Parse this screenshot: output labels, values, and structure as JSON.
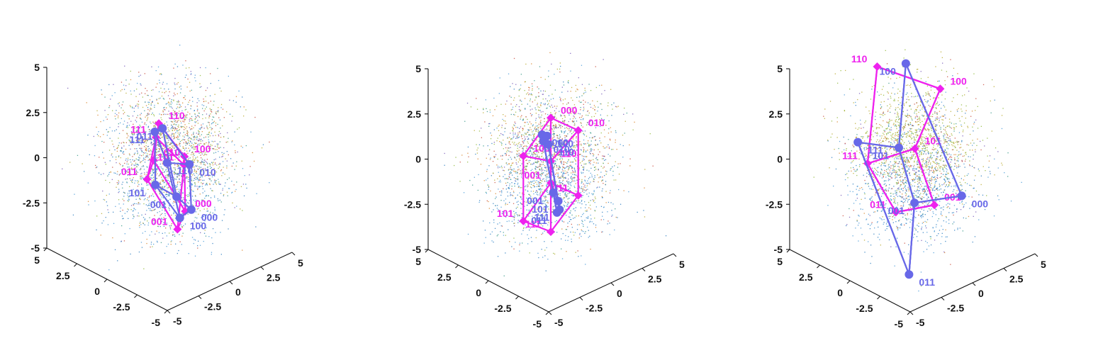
{
  "chart_data": [
    {
      "type": "scatter",
      "title": "",
      "projection": "3d",
      "xlim": [
        -5,
        5
      ],
      "ylim": [
        -5,
        5
      ],
      "zlim": [
        -5,
        5
      ],
      "xticks": [
        "-5",
        "-2.5",
        "0",
        "2.5",
        "5"
      ],
      "yticks": [
        "-5",
        "-2.5",
        "0",
        "2.5",
        "5"
      ],
      "zticks": [
        "-5",
        "-2.5",
        "0",
        "2.5",
        "5"
      ],
      "grid": false,
      "colors": {
        "blue": "#6868e8",
        "magenta": "#ee22ee"
      },
      "cubes": [
        {
          "color": "magenta",
          "marker": "diamond",
          "vertices": [
            {
              "label": "000",
              "xyz": [
                0.3,
                -1.0,
                -2.6
              ]
            },
            {
              "label": "001",
              "xyz": [
                -0.9,
                -1.6,
                -3.0
              ]
            },
            {
              "label": "010",
              "xyz": [
                -0.4,
                0.9,
                -0.2
              ]
            },
            {
              "label": "011",
              "xyz": [
                -1.5,
                0.3,
                -0.7
              ]
            },
            {
              "label": "100",
              "xyz": [
                1.2,
                0.0,
                -0.2
              ]
            },
            {
              "label": "101",
              "xyz": [
                0.2,
                -1.0,
                0.0
              ]
            },
            {
              "label": "110",
              "xyz": [
                0.6,
                1.5,
                1.3
              ]
            },
            {
              "label": "111",
              "xyz": [
                -0.5,
                0.6,
                1.2
              ]
            }
          ]
        },
        {
          "color": "blue",
          "marker": "circle",
          "vertices": [
            {
              "label": "000",
              "xyz": [
                0.4,
                -1.4,
                -2.4
              ]
            },
            {
              "label": "001",
              "xyz": [
                -0.2,
                -0.8,
                -1.7
              ]
            },
            {
              "label": "010",
              "xyz": [
                1.8,
                0.2,
                -0.9
              ]
            },
            {
              "label": "011",
              "xyz": [
                0.8,
                1.4,
                1.0
              ]
            },
            {
              "label": "100",
              "xyz": [
                -0.9,
                -1.8,
                -2.3
              ]
            },
            {
              "label": "101",
              "xyz": [
                -1.9,
                -0.8,
                -0.5
              ]
            },
            {
              "label": "110",
              "xyz": [
                0.1,
                0.3,
                -0.3
              ]
            },
            {
              "label": "111",
              "xyz": [
                -0.4,
                0.8,
                1.4
              ]
            }
          ]
        }
      ]
    },
    {
      "type": "scatter",
      "title": "",
      "projection": "3d",
      "xlim": [
        -5,
        5
      ],
      "ylim": [
        -5,
        5
      ],
      "zlim": [
        -5,
        5
      ],
      "xticks": [
        "-5",
        "-2.5",
        "0",
        "2.5",
        "5"
      ],
      "yticks": [
        "-5",
        "-2.5",
        "0",
        "2.5",
        "5"
      ],
      "zticks": [
        "-5",
        "-2.5",
        "0",
        "2.5",
        "5"
      ],
      "grid": false,
      "colors": {
        "blue": "#6868e8",
        "magenta": "#ee22ee"
      },
      "cubes": [
        {
          "color": "magenta",
          "marker": "diamond",
          "vertices": [
            {
              "label": "000",
              "xyz": [
                0.0,
                0.0,
                2.4
              ]
            },
            {
              "label": "001",
              "xyz": [
                0.0,
                0.0,
                -1.2
              ]
            },
            {
              "label": "010",
              "xyz": [
                2.2,
                0.0,
                1.0
              ]
            },
            {
              "label": "011",
              "xyz": [
                2.2,
                0.0,
                -2.6
              ]
            },
            {
              "label": "100",
              "xyz": [
                -2.2,
                0.0,
                1.0
              ]
            },
            {
              "label": "101",
              "xyz": [
                -2.2,
                0.0,
                -2.6
              ]
            },
            {
              "label": "110",
              "xyz": [
                0.0,
                0.0,
                0.0
              ]
            },
            {
              "label": "111",
              "xyz": [
                0.0,
                0.0,
                -3.9
              ]
            }
          ]
        },
        {
          "color": "blue",
          "marker": "circle",
          "vertices": [
            {
              "label": "000",
              "xyz": [
                -0.7,
                0.0,
                1.7
              ]
            },
            {
              "label": "001",
              "xyz": [
                0.2,
                0.0,
                -1.8
              ]
            },
            {
              "label": "010",
              "xyz": [
                -0.6,
                0.0,
                1.3
              ]
            },
            {
              "label": "011",
              "xyz": [
                0.5,
                0.0,
                -3.0
              ]
            },
            {
              "label": "100",
              "xyz": [
                -0.3,
                0.0,
                1.5
              ]
            },
            {
              "label": "101",
              "xyz": [
                0.6,
                0.0,
                -2.4
              ]
            },
            {
              "label": "110",
              "xyz": [
                -0.2,
                0.0,
                1.0
              ]
            },
            {
              "label": "111",
              "xyz": [
                0.7,
                0.0,
                -2.9
              ]
            }
          ]
        }
      ]
    },
    {
      "type": "scatter",
      "title": "",
      "projection": "3d",
      "xlim": [
        -5,
        5
      ],
      "ylim": [
        -5,
        5
      ],
      "zlim": [
        -5,
        5
      ],
      "xticks": [
        "-5",
        "-2.5",
        "0",
        "2.5",
        "5"
      ],
      "yticks": [
        "-5",
        "-2.5",
        "0",
        "2.5",
        "5"
      ],
      "zticks": [
        "-5",
        "-2.5",
        "0",
        "2.5",
        "5"
      ],
      "grid": false,
      "colors": {
        "blue": "#6868e8",
        "magenta": "#ee22ee"
      },
      "cubes": [
        {
          "color": "magenta",
          "marker": "diamond",
          "vertices": [
            {
              "label": "001",
              "xyz": [
                0.9,
                -0.9,
                -2.4
              ]
            },
            {
              "label": "011",
              "xyz": [
                -1.9,
                -0.6,
                -2.0
              ]
            },
            {
              "label": "101",
              "xyz": [
                0.4,
                0.2,
                0.5
              ]
            },
            {
              "label": "111",
              "xyz": [
                -3.1,
                0.5,
                0.7
              ]
            },
            {
              "label": "100",
              "xyz": [
                3.4,
                1.2,
                2.5
              ]
            },
            {
              "label": "110",
              "xyz": [
                -0.4,
                2.5,
                4.5
              ]
            }
          ]
        },
        {
          "color": "blue",
          "marker": "circle",
          "vertices": [
            {
              "label": "000",
              "xyz": [
                2.8,
                -1.2,
                -2.4
              ]
            },
            {
              "label": "001",
              "xyz": [
                -0.5,
                -0.7,
                -1.9
              ]
            },
            {
              "label": "011",
              "xyz": [
                -2.0,
                -1.8,
                -5.0
              ]
            },
            {
              "label": "101",
              "xyz": [
                -0.5,
                0.6,
                0.7
              ]
            },
            {
              "label": "111",
              "xyz": [
                -3.4,
                1.0,
                1.8
              ]
            },
            {
              "label": "100",
              "xyz": [
                1.8,
                2.4,
                4.0
              ]
            }
          ]
        }
      ]
    }
  ]
}
